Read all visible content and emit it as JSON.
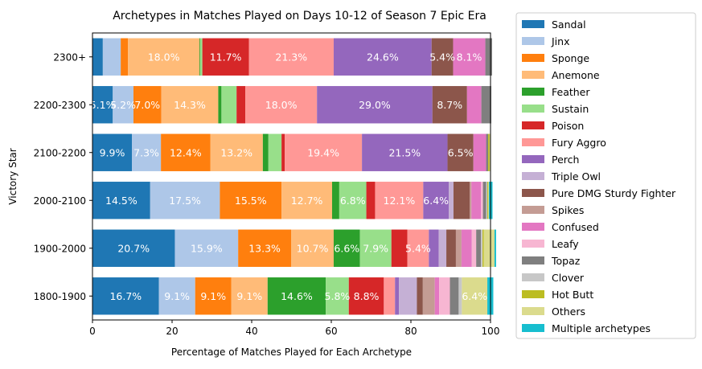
{
  "chart_data": {
    "type": "bar",
    "orientation": "horizontal",
    "stacked": true,
    "title": "Archetypes in Matches Played on Days 10-12 of Season 7 Epic Era",
    "xlabel": "Percentage of Matches Played for Each Archetype",
    "ylabel": "Victory Star",
    "xlim": [
      0,
      100
    ],
    "xticks": [
      "0",
      "20",
      "40",
      "60",
      "80",
      "100"
    ],
    "grid": false,
    "legend_position": "right, outside plot",
    "categories": [
      "2300+",
      "2200-2300",
      "2100-2200",
      "2000-2100",
      "1900-2000",
      "1800-1900"
    ],
    "series": [
      {
        "name": "Sandal",
        "color": "#1f77b4",
        "values": [
          2.6,
          5.1,
          9.9,
          14.5,
          20.7,
          16.7
        ],
        "labels": [
          "",
          "5.1%",
          "9.9%",
          "14.5%",
          "20.7%",
          "16.7%"
        ]
      },
      {
        "name": "Jinx",
        "color": "#aec7e8",
        "values": [
          4.5,
          5.2,
          7.3,
          17.5,
          15.9,
          9.1
        ],
        "labels": [
          "",
          "5.2%",
          "7.3%",
          "17.5%",
          "15.9%",
          "9.1%"
        ]
      },
      {
        "name": "Sponge",
        "color": "#ff7f0e",
        "values": [
          1.8,
          7.0,
          12.4,
          15.5,
          13.3,
          9.1
        ],
        "labels": [
          "",
          "7.0%",
          "12.4%",
          "15.5%",
          "13.3%",
          "9.1%"
        ]
      },
      {
        "name": "Anemone",
        "color": "#ffbb78",
        "values": [
          18.0,
          14.3,
          13.2,
          12.7,
          10.7,
          9.1
        ],
        "labels": [
          "18.0%",
          "14.3%",
          "13.2%",
          "12.7%",
          "10.7%",
          "9.1%"
        ]
      },
      {
        "name": "Feather",
        "color": "#2ca02c",
        "values": [
          0.2,
          0.8,
          1.4,
          1.8,
          6.6,
          14.6
        ],
        "labels": [
          "",
          "",
          "",
          "",
          "6.6%",
          "14.6%"
        ]
      },
      {
        "name": "Sustain",
        "color": "#98df8a",
        "values": [
          0.5,
          3.8,
          3.3,
          6.8,
          7.9,
          5.8
        ],
        "labels": [
          "",
          "",
          "",
          "6.8%",
          "7.9%",
          "5.8%"
        ]
      },
      {
        "name": "Poison",
        "color": "#d62728",
        "values": [
          11.7,
          2.2,
          0.8,
          2.2,
          4.0,
          8.8
        ],
        "labels": [
          "11.7%",
          "",
          "",
          "",
          "",
          "8.8%"
        ]
      },
      {
        "name": "Fury Aggro",
        "color": "#ff9896",
        "values": [
          21.3,
          18.0,
          19.4,
          12.1,
          5.4,
          2.8
        ],
        "labels": [
          "21.3%",
          "18.0%",
          "19.4%",
          "12.1%",
          "5.4%",
          ""
        ]
      },
      {
        "name": "Perch",
        "color": "#9467bd",
        "values": [
          24.6,
          29.0,
          21.5,
          6.4,
          2.5,
          1.0
        ],
        "labels": [
          "24.6%",
          "29.0%",
          "21.5%",
          "6.4%",
          "",
          ""
        ]
      },
      {
        "name": "Triple Owl",
        "color": "#c5b0d5",
        "values": [
          0.0,
          0.0,
          0.0,
          1.2,
          1.9,
          4.5
        ],
        "labels": [
          "",
          "",
          "",
          "",
          "",
          ""
        ]
      },
      {
        "name": "Pure DMG Sturdy Fighter",
        "color": "#8c564b",
        "values": [
          5.4,
          8.7,
          6.5,
          4.1,
          2.4,
          1.5
        ],
        "labels": [
          "5.4%",
          "8.7%",
          "6.5%",
          "",
          "",
          ""
        ]
      },
      {
        "name": "Spikes",
        "color": "#c49c94",
        "values": [
          0.0,
          0.0,
          0.0,
          0.4,
          1.4,
          3.0
        ],
        "labels": [
          "",
          "",
          "",
          "",
          "",
          ""
        ]
      },
      {
        "name": "Confused",
        "color": "#e377c2",
        "values": [
          8.1,
          3.6,
          3.2,
          2.4,
          2.6,
          1.1
        ],
        "labels": [
          "8.1%",
          "",
          "",
          "",
          "",
          ""
        ]
      },
      {
        "name": "Leafy",
        "color": "#f7b6d2",
        "values": [
          0.0,
          0.0,
          0.0,
          0.5,
          1.1,
          2.7
        ],
        "labels": [
          "",
          "",
          "",
          "",
          "",
          ""
        ]
      },
      {
        "name": "Topaz",
        "color": "#7f7f7f",
        "values": [
          1.7,
          2.5,
          0.5,
          0.8,
          1.2,
          2.2
        ],
        "labels": [
          "",
          "",
          "",
          "",
          "",
          ""
        ]
      },
      {
        "name": "Clover",
        "color": "#c7c7c7",
        "values": [
          0.0,
          0.0,
          0.0,
          0.3,
          0.4,
          0.8
        ],
        "labels": [
          "",
          "",
          "",
          "",
          "",
          ""
        ]
      },
      {
        "name": "Hot Butt",
        "color": "#bcbd22",
        "values": [
          0.0,
          0.0,
          0.3,
          0.2,
          0.3,
          0.0
        ],
        "labels": [
          "",
          "",
          "",
          "",
          "",
          ""
        ]
      },
      {
        "name": "Others",
        "color": "#dbdb8d",
        "values": [
          0.0,
          0.0,
          0.3,
          0.2,
          2.7,
          6.4
        ],
        "labels": [
          "",
          "",
          "",
          "",
          "",
          "6.4%"
        ]
      },
      {
        "name": "Multiple archetypes",
        "color": "#17becf",
        "values": [
          0.0,
          0.0,
          0.0,
          0.9,
          0.4,
          1.5
        ],
        "labels": [
          "",
          "",
          "",
          "",
          "",
          ""
        ]
      }
    ]
  }
}
